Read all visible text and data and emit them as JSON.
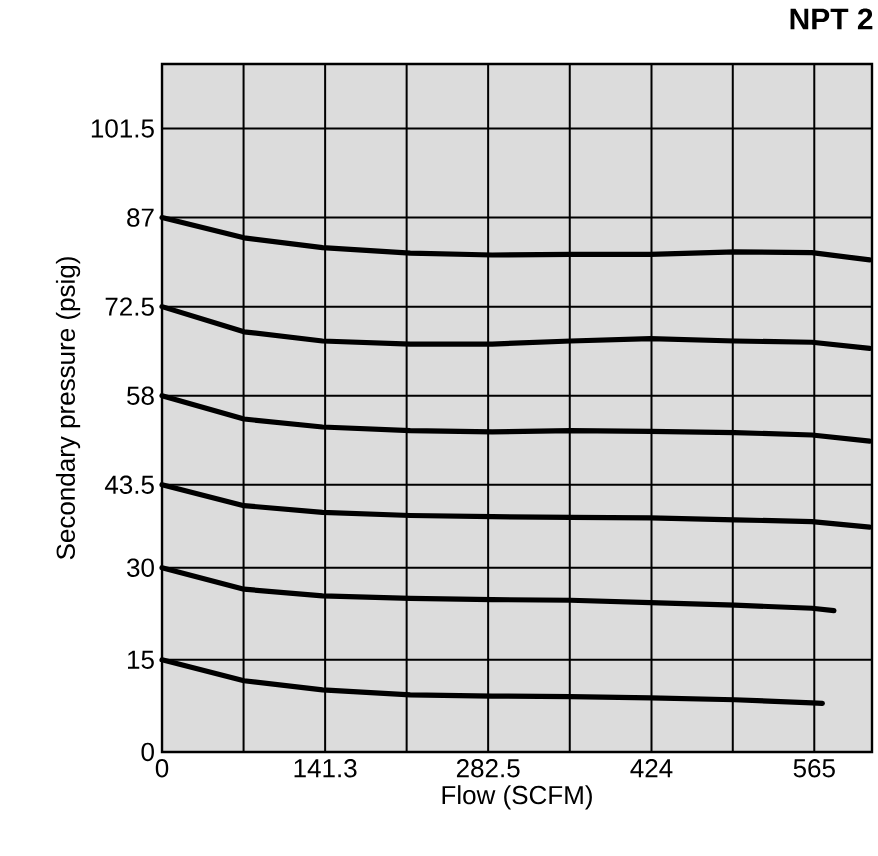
{
  "chart_data": {
    "type": "line",
    "title": "NPT 2",
    "xlabel": "Flow (SCFM)",
    "ylabel": "Secondary pressure (psig)",
    "x": [
      0,
      71,
      139,
      215,
      286,
      354,
      423,
      496,
      563,
      613
    ],
    "series": [
      {
        "color": "#000000",
        "values": [
          87,
          83.7,
          82.1,
          81.2,
          80.9,
          81,
          81,
          81.4,
          81.3,
          80.1
        ]
      },
      {
        "color": "#000000",
        "values": [
          72.5,
          68.4,
          66.9,
          66.4,
          66.4,
          66.9,
          67.3,
          66.9,
          66.7,
          65.7
        ]
      },
      {
        "color": "#000000",
        "values": [
          58,
          54.2,
          52.9,
          52.3,
          52.1,
          52.3,
          52.2,
          52,
          51.6,
          50.6
        ]
      },
      {
        "color": "#000000",
        "values": [
          43.5,
          40.1,
          39.0,
          38.5,
          38.3,
          38.2,
          38.1,
          37.8,
          37.5,
          36.6
        ]
      },
      {
        "color": "#000000",
        "x": [
          0,
          71,
          139,
          215,
          286,
          354,
          423,
          496,
          563,
          582
        ],
        "values": [
          30,
          26.5,
          25.4,
          25,
          24.8,
          24.7,
          24.3,
          23.9,
          23.4,
          23
        ]
      },
      {
        "color": "#000000",
        "x": [
          0,
          71,
          139,
          215,
          286,
          354,
          423,
          496,
          563,
          572
        ],
        "values": [
          15,
          11.6,
          10.1,
          9.3,
          9.1,
          9,
          8.8,
          8.5,
          8,
          7.9
        ]
      }
    ],
    "xlim": [
      0,
      615
    ],
    "ylim": [
      0,
      112
    ],
    "xticks": [
      0,
      {
        "value": 70.65,
        "label": null
      },
      141.3,
      {
        "value": 211.9,
        "label": null
      },
      282.5,
      {
        "value": 353.2,
        "label": null
      },
      424,
      {
        "value": 494.4,
        "label": null
      },
      565
    ],
    "yticks": [
      0,
      15,
      30,
      43.5,
      58,
      72.5,
      87,
      101.5
    ],
    "grid": true,
    "marker": "none",
    "line_style": "solid"
  }
}
